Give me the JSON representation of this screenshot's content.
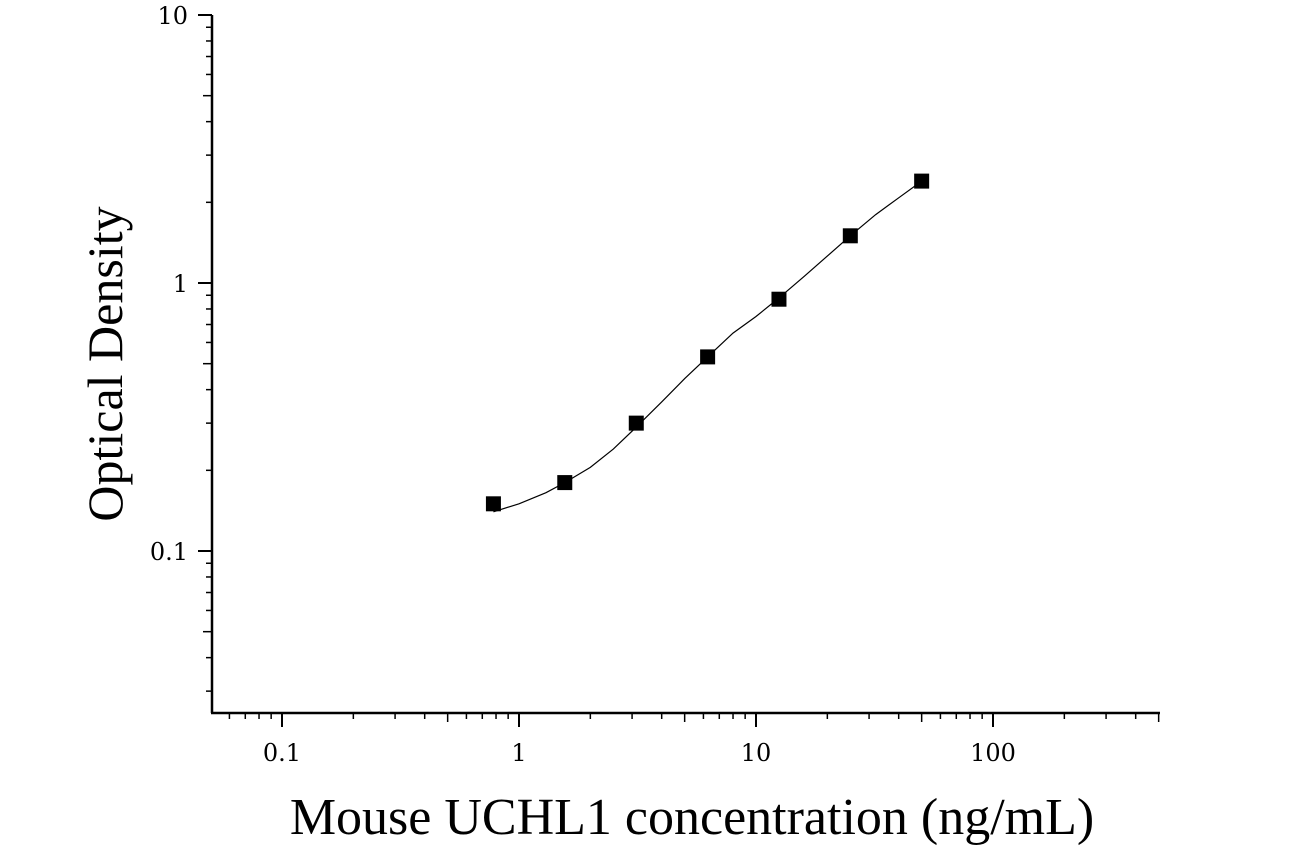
{
  "chart_data": {
    "type": "scatter",
    "title": "",
    "xlabel": "Mouse UCHL1 concentration (ng/mL)",
    "ylabel": "Optical Density",
    "x_scale": "log",
    "y_scale": "log",
    "xlim": [
      0.05,
      500
    ],
    "ylim": [
      0.025,
      10
    ],
    "x_ticks": [
      {
        "value": 0.1,
        "label": "0.1"
      },
      {
        "value": 1,
        "label": "1"
      },
      {
        "value": 10,
        "label": "10"
      },
      {
        "value": 100,
        "label": "100"
      }
    ],
    "y_ticks": [
      {
        "value": 0.1,
        "label": "0.1"
      },
      {
        "value": 1,
        "label": "1"
      },
      {
        "value": 10,
        "label": "10"
      }
    ],
    "grid": false,
    "legend": "none",
    "series": [
      {
        "marker": "square",
        "color": "#000000",
        "x": [
          0.78,
          1.56,
          3.125,
          6.25,
          12.5,
          25,
          50
        ],
        "y": [
          0.15,
          0.18,
          0.3,
          0.53,
          0.87,
          1.5,
          2.4
        ]
      }
    ],
    "fit_curve": {
      "color": "#000000",
      "x": [
        0.78,
        1.0,
        1.3,
        1.56,
        2.0,
        2.5,
        3.125,
        4.0,
        5.0,
        6.25,
        8.0,
        10.0,
        12.5,
        16.0,
        20.0,
        25.0,
        32.0,
        40.0,
        50.0
      ],
      "y": [
        0.14,
        0.15,
        0.165,
        0.18,
        0.205,
        0.24,
        0.29,
        0.36,
        0.44,
        0.53,
        0.65,
        0.75,
        0.88,
        1.06,
        1.26,
        1.5,
        1.8,
        2.08,
        2.4
      ]
    }
  }
}
